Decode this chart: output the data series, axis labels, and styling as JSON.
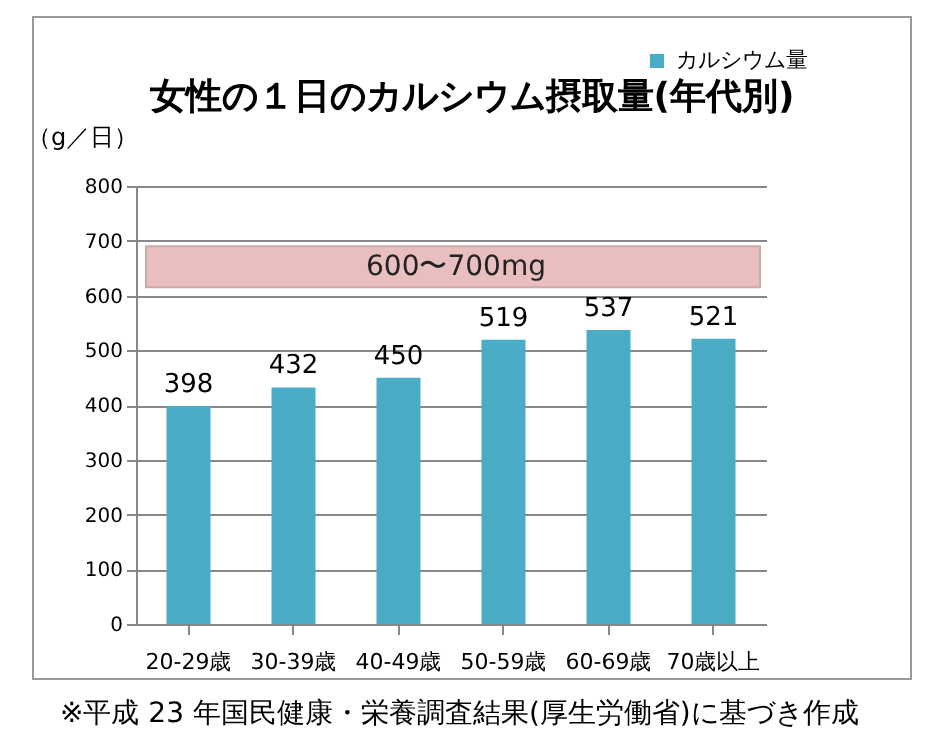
{
  "chart_data": {
    "type": "bar",
    "title": "女性の１日のカルシウム摂取量(年代別)",
    "ylabel": "（g／日）",
    "categories": [
      "20-29歳",
      "30-39歳",
      "40-49歳",
      "50-59歳",
      "60-69歳",
      "70歳以上"
    ],
    "series": [
      {
        "name": "カルシウム量",
        "color": "#4bacc6",
        "values": [
          398,
          432,
          450,
          519,
          537,
          521
        ]
      }
    ],
    "ylim": [
      0,
      800
    ],
    "yticks": [
      0,
      100,
      200,
      300,
      400,
      500,
      600,
      700,
      800
    ],
    "grid": "y",
    "legend": "top right",
    "data_labels": true,
    "bands": [
      {
        "axis": "y",
        "from": 615,
        "to": 690,
        "label": "600〜700mg",
        "color": "#e6b9b8"
      }
    ],
    "annotations": [
      "※平成 23 年国民健康・栄養調査結果(厚生労働省)に基づき作成"
    ]
  }
}
